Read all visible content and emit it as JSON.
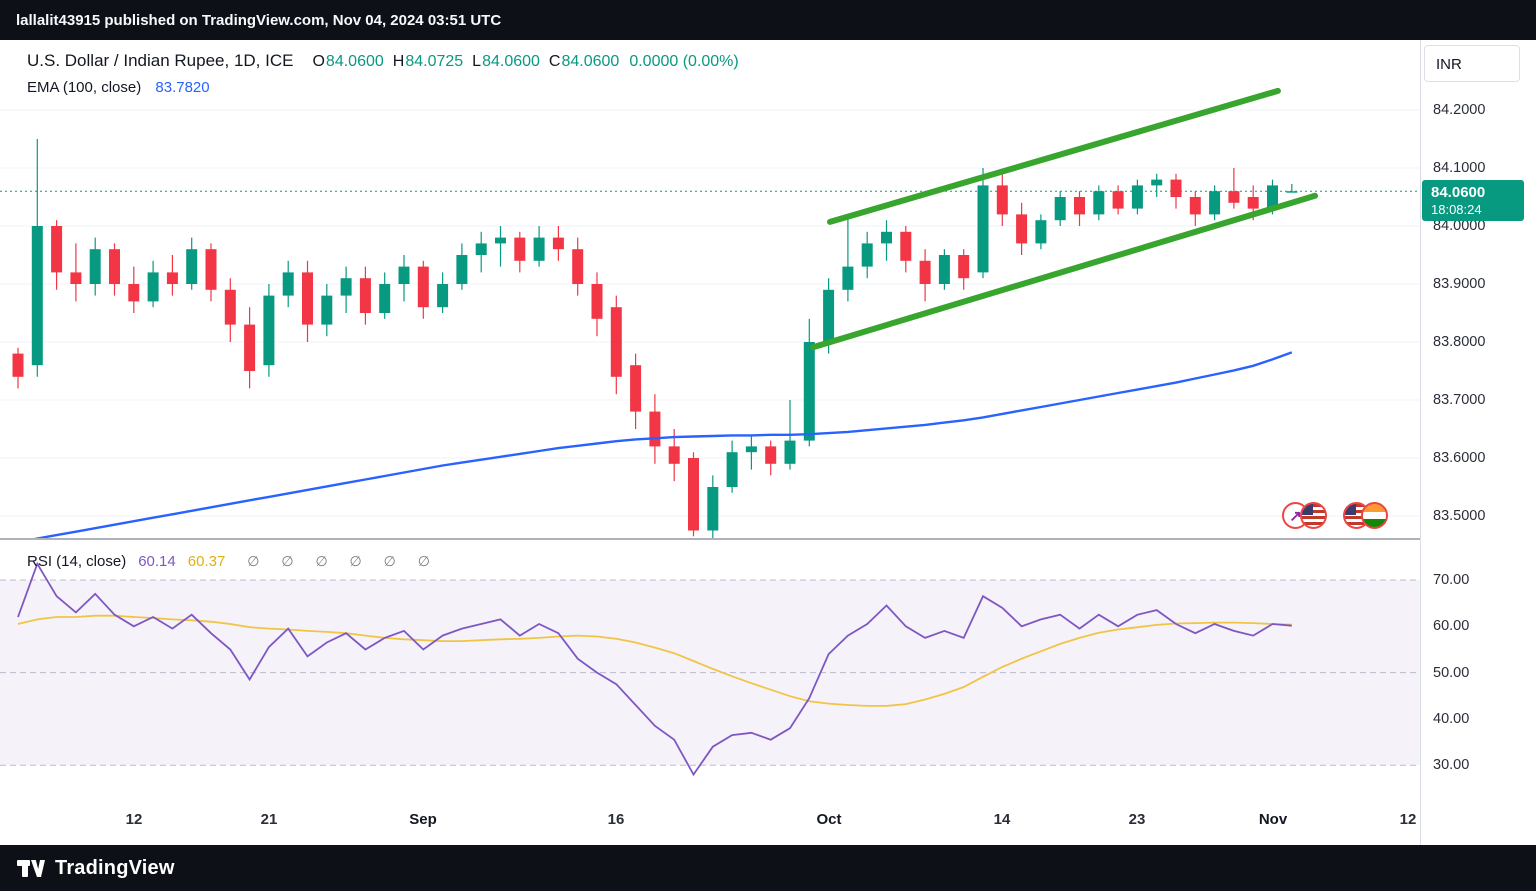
{
  "topbar": {
    "attribution": "lallalit43915 published on TradingView.com, Nov 04, 2024 03:51 UTC"
  },
  "header": {
    "symbol_title": "U.S. Dollar / Indian Rupee, 1D, ICE",
    "ohlc": [
      {
        "label": "O",
        "value": "84.0600"
      },
      {
        "label": "H",
        "value": "84.0725"
      },
      {
        "label": "L",
        "value": "84.0600"
      },
      {
        "label": "C",
        "value": "84.0600"
      }
    ],
    "change": "0.0000 (0.00%)",
    "ema_label": "EMA (100, close)",
    "ema_value": "83.7820"
  },
  "price_scale": {
    "currency": "INR",
    "labels": [
      "84.2000",
      "84.1000",
      "84.0000",
      "83.9000",
      "83.8000",
      "83.7000",
      "83.6000",
      "83.5000"
    ],
    "last_price": "84.0600",
    "countdown": "18:08:24"
  },
  "rsi_header": {
    "name": "RSI (14, close)",
    "value": "60.14",
    "ma_value": "60.37",
    "empty_values": "∅ ∅ ∅ ∅ ∅ ∅"
  },
  "rsi_scale": [
    "70.00",
    "60.00",
    "50.00",
    "40.00",
    "30.00"
  ],
  "footer": {
    "brand": "TradingView"
  },
  "colors": {
    "up": "#089981",
    "down": "#f23645",
    "ema": "#2962FF",
    "channel": "#38a52e",
    "rsi": "#7E57C2",
    "rsi_ma": "#f0c545",
    "last_price_bg": "#089981",
    "grid": "#f1f3f8",
    "band_fill": "rgba(126,87,194,0.08)"
  },
  "chart_data": {
    "type": "candlestick",
    "title": "U.S. Dollar / Indian Rupee, 1D, ICE",
    "interval": "1D",
    "price_axis_range": [
      83.44,
      84.25
    ],
    "last_price": 84.06,
    "candles": [
      [
        83.78,
        83.79,
        83.72,
        83.74
      ],
      [
        83.76,
        84.15,
        83.74,
        84.0
      ],
      [
        84.0,
        84.01,
        83.89,
        83.92
      ],
      [
        83.92,
        83.97,
        83.87,
        83.9
      ],
      [
        83.9,
        83.98,
        83.88,
        83.96
      ],
      [
        83.96,
        83.97,
        83.88,
        83.9
      ],
      [
        83.9,
        83.93,
        83.85,
        83.87
      ],
      [
        83.87,
        83.94,
        83.86,
        83.92
      ],
      [
        83.92,
        83.95,
        83.88,
        83.9
      ],
      [
        83.9,
        83.98,
        83.89,
        83.96
      ],
      [
        83.96,
        83.97,
        83.87,
        83.89
      ],
      [
        83.89,
        83.91,
        83.8,
        83.83
      ],
      [
        83.83,
        83.86,
        83.72,
        83.75
      ],
      [
        83.76,
        83.9,
        83.74,
        83.88
      ],
      [
        83.88,
        83.94,
        83.86,
        83.92
      ],
      [
        83.92,
        83.94,
        83.8,
        83.83
      ],
      [
        83.83,
        83.9,
        83.81,
        83.88
      ],
      [
        83.88,
        83.93,
        83.85,
        83.91
      ],
      [
        83.91,
        83.93,
        83.83,
        83.85
      ],
      [
        83.85,
        83.92,
        83.84,
        83.9
      ],
      [
        83.9,
        83.95,
        83.87,
        83.93
      ],
      [
        83.93,
        83.94,
        83.84,
        83.86
      ],
      [
        83.86,
        83.92,
        83.85,
        83.9
      ],
      [
        83.9,
        83.97,
        83.89,
        83.95
      ],
      [
        83.95,
        83.99,
        83.92,
        83.97
      ],
      [
        83.97,
        84.0,
        83.93,
        83.98
      ],
      [
        83.98,
        83.99,
        83.92,
        83.94
      ],
      [
        83.94,
        84.0,
        83.93,
        83.98
      ],
      [
        83.98,
        84.0,
        83.94,
        83.96
      ],
      [
        83.96,
        83.98,
        83.88,
        83.9
      ],
      [
        83.9,
        83.92,
        83.81,
        83.84
      ],
      [
        83.86,
        83.88,
        83.71,
        83.74
      ],
      [
        83.76,
        83.78,
        83.65,
        83.68
      ],
      [
        83.68,
        83.71,
        83.59,
        83.62
      ],
      [
        83.62,
        83.65,
        83.56,
        83.59
      ],
      [
        83.6,
        83.61,
        83.465,
        83.475
      ],
      [
        83.475,
        83.57,
        83.46,
        83.55
      ],
      [
        83.55,
        83.63,
        83.54,
        83.61
      ],
      [
        83.61,
        83.64,
        83.58,
        83.62
      ],
      [
        83.62,
        83.63,
        83.57,
        83.59
      ],
      [
        83.59,
        83.7,
        83.58,
        83.63
      ],
      [
        83.63,
        83.84,
        83.62,
        83.8
      ],
      [
        83.8,
        83.91,
        83.78,
        83.89
      ],
      [
        83.89,
        84.02,
        83.87,
        83.93
      ],
      [
        83.93,
        83.99,
        83.91,
        83.97
      ],
      [
        83.97,
        84.01,
        83.94,
        83.99
      ],
      [
        83.99,
        84.0,
        83.92,
        83.94
      ],
      [
        83.94,
        83.96,
        83.87,
        83.9
      ],
      [
        83.9,
        83.96,
        83.89,
        83.95
      ],
      [
        83.95,
        83.96,
        83.89,
        83.91
      ],
      [
        83.92,
        84.1,
        83.91,
        84.07
      ],
      [
        84.07,
        84.09,
        84.0,
        84.02
      ],
      [
        84.02,
        84.04,
        83.95,
        83.97
      ],
      [
        83.97,
        84.02,
        83.96,
        84.01
      ],
      [
        84.01,
        84.06,
        84.0,
        84.05
      ],
      [
        84.05,
        84.06,
        84.0,
        84.02
      ],
      [
        84.02,
        84.07,
        84.01,
        84.06
      ],
      [
        84.06,
        84.07,
        84.02,
        84.03
      ],
      [
        84.03,
        84.08,
        84.02,
        84.07
      ],
      [
        84.07,
        84.09,
        84.05,
        84.08
      ],
      [
        84.08,
        84.09,
        84.03,
        84.05
      ],
      [
        84.05,
        84.06,
        84.0,
        84.02
      ],
      [
        84.02,
        84.07,
        84.01,
        84.06
      ],
      [
        84.06,
        84.1,
        84.03,
        84.04
      ],
      [
        84.05,
        84.07,
        84.01,
        84.03
      ],
      [
        84.03,
        84.08,
        84.02,
        84.07
      ],
      [
        84.06,
        84.0725,
        84.06,
        84.06
      ]
    ],
    "ema_100": [
      83.455,
      83.461,
      83.467,
      83.473,
      83.479,
      83.485,
      83.491,
      83.497,
      83.503,
      83.509,
      83.515,
      83.521,
      83.527,
      83.533,
      83.539,
      83.545,
      83.551,
      83.557,
      83.563,
      83.569,
      83.575,
      83.581,
      83.587,
      83.592,
      83.597,
      83.602,
      83.607,
      83.612,
      83.617,
      83.621,
      83.625,
      83.629,
      83.632,
      83.634,
      83.636,
      83.637,
      83.638,
      83.639,
      83.639,
      83.64,
      83.64,
      83.641,
      83.643,
      83.645,
      83.648,
      83.651,
      83.654,
      83.657,
      83.661,
      83.665,
      83.67,
      83.676,
      83.682,
      83.688,
      83.694,
      83.7,
      83.706,
      83.712,
      83.718,
      83.724,
      83.73,
      83.737,
      83.744,
      83.751,
      83.759,
      83.77,
      83.782
    ],
    "channel": {
      "upper": {
        "from": [
          42.07,
          84.007
        ],
        "to": [
          65.28,
          84.233
        ]
      },
      "lower": {
        "from": [
          41.19,
          83.791
        ],
        "to": [
          67.2,
          84.052
        ]
      }
    },
    "rsi": {
      "period": 14,
      "levels": [
        70,
        50,
        30
      ],
      "values": [
        62,
        73.5,
        66.5,
        63,
        67,
        62.5,
        60,
        62,
        59.5,
        62.5,
        58.5,
        55,
        48.5,
        55.5,
        59.5,
        53.5,
        56.5,
        58.5,
        55,
        57.5,
        59,
        55,
        58,
        59.5,
        60.5,
        61.5,
        58,
        60.5,
        58.5,
        53,
        50,
        47.5,
        43,
        38.5,
        35.5,
        28,
        34,
        36.5,
        37,
        35.5,
        38,
        44.5,
        54,
        58,
        60.5,
        64.5,
        60,
        57.5,
        59,
        57.5,
        66.5,
        64,
        60,
        61.5,
        62.5,
        59.5,
        62.5,
        60,
        62.5,
        63.5,
        60.5,
        58.5,
        60.5,
        59,
        58,
        60.5,
        60.14
      ],
      "ma_values": [
        60.5,
        61.5,
        62,
        62,
        62.3,
        62.3,
        62,
        61.8,
        61.5,
        61.3,
        61,
        60.5,
        59.8,
        59.5,
        59.3,
        59,
        58.8,
        58.5,
        58,
        57.5,
        57.2,
        57,
        56.8,
        56.8,
        57,
        57.2,
        57.3,
        57.5,
        57.8,
        58,
        57.8,
        57.3,
        56.5,
        55.4,
        54.2,
        52.5,
        50.8,
        49.2,
        47.7,
        46.3,
        44.9,
        43.8,
        43.3,
        43.0,
        42.8,
        42.8,
        43.2,
        44.2,
        45.4,
        46.9,
        49.1,
        51.2,
        53.0,
        54.6,
        56.2,
        57.5,
        58.6,
        59.3,
        59.8,
        60.3,
        60.6,
        60.7,
        60.8,
        60.8,
        60.7,
        60.5,
        60.37
      ]
    },
    "x_axis_labels": [
      {
        "label": "12",
        "i": 6,
        "bold": false
      },
      {
        "label": "21",
        "i": 13,
        "bold": false
      },
      {
        "label": "Sep",
        "i": 21,
        "bold": true
      },
      {
        "label": "16",
        "i": 31,
        "bold": false
      },
      {
        "label": "Oct",
        "i": 42,
        "bold": true
      },
      {
        "label": "14",
        "i": 51,
        "bold": false
      },
      {
        "label": "23",
        "i": 58,
        "bold": false
      },
      {
        "label": "Nov",
        "i": 65,
        "bold": true
      },
      {
        "label": "12",
        "i": 72,
        "bold": false
      }
    ]
  }
}
